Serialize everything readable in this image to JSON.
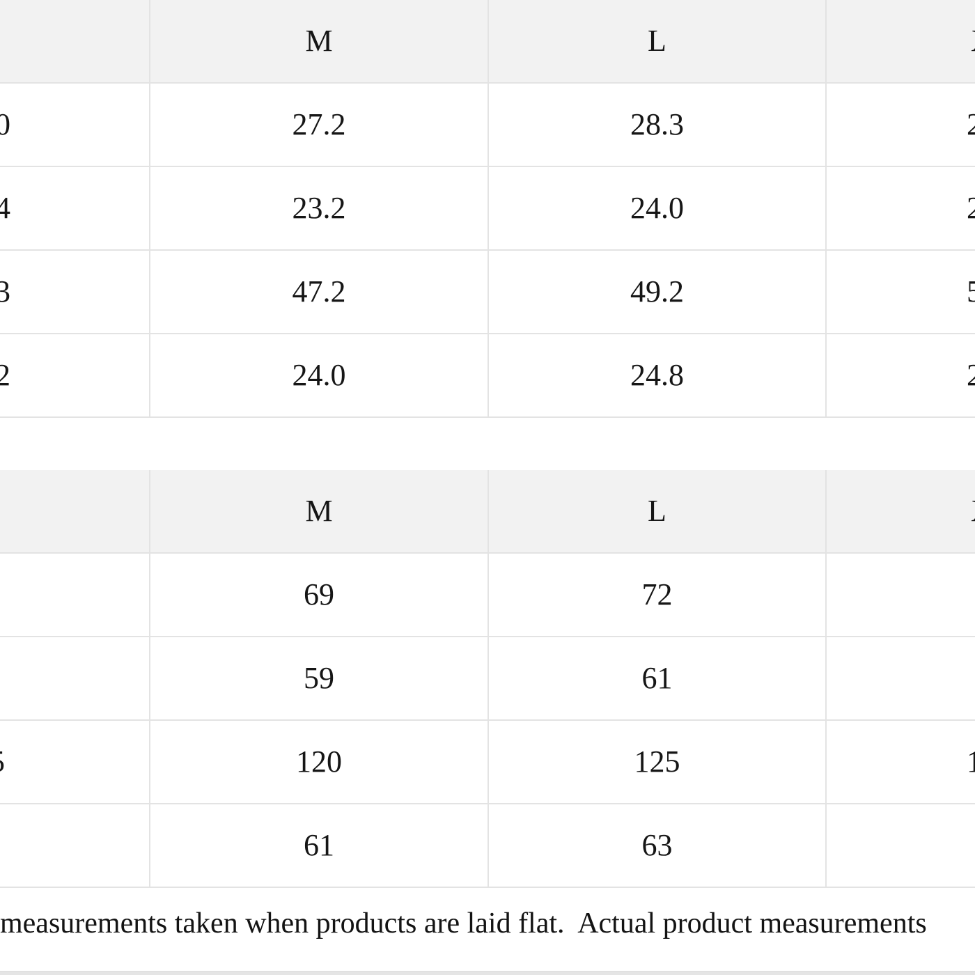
{
  "colors": {
    "header_background": "#f2f2f2",
    "grid_border": "#e3e3e3",
    "text": "#161616",
    "bottom_band": "#e5e5e5",
    "page_background": "#ffffff"
  },
  "table_inches": {
    "header": {
      "left_partial": "",
      "m_label": "M",
      "l_label": "L",
      "right_partial": "X"
    },
    "rows": [
      {
        "left_partial": "0",
        "m": "27.2",
        "l": "28.3",
        "right_partial": "2"
      },
      {
        "left_partial": "4",
        "m": "23.2",
        "l": "24.0",
        "right_partial": "2"
      },
      {
        "left_partial": "3",
        "m": "47.2",
        "l": "49.2",
        "right_partial": "5"
      },
      {
        "left_partial": "2",
        "m": "24.0",
        "l": "24.8",
        "right_partial": "2"
      }
    ]
  },
  "table_cm": {
    "header": {
      "left_partial": "",
      "m_label": "M",
      "l_label": "L",
      "right_partial": "X"
    },
    "rows": [
      {
        "left_partial": "",
        "m": "69",
        "l": "72",
        "right_partial": ""
      },
      {
        "left_partial": "",
        "m": "59",
        "l": "61",
        "right_partial": ""
      },
      {
        "left_partial": "5",
        "m": "120",
        "l": "125",
        "right_partial": "1"
      },
      {
        "left_partial": "",
        "m": "61",
        "l": "63",
        "right_partial": ""
      }
    ]
  },
  "note": {
    "text": "measurements taken when products are laid flat.  Actual product measurements"
  }
}
